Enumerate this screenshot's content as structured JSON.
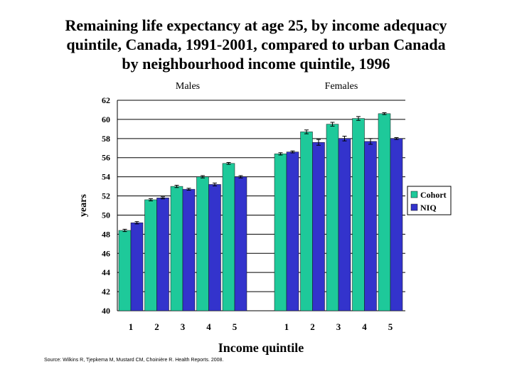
{
  "title_lines": [
    "Remaining life expectancy at age 25, by  income adequacy",
    "quintile, Canada, 1991-2001, compared to urban Canada",
    "by neighbourhood income quintile, 1996"
  ],
  "source": "Source: Wilkins R, Tjepkema M, Mustard CM, Choinière R. Health Reports. 2008.",
  "colors": {
    "cohort": "#1ec99a",
    "niq": "#3333cc",
    "grid": "#000000"
  },
  "chart_data": {
    "type": "bar",
    "ylabel": "years",
    "xlabel": "Income quintile",
    "ylim": [
      40,
      62
    ],
    "yticks": [
      40,
      42,
      44,
      46,
      48,
      50,
      52,
      54,
      56,
      58,
      60,
      62
    ],
    "grid": true,
    "legend_position": "right",
    "groups": [
      {
        "label": "Males",
        "categories": [
          "1",
          "2",
          "3",
          "4",
          "5"
        ]
      },
      {
        "label": "Females",
        "categories": [
          "1",
          "2",
          "3",
          "4",
          "5"
        ]
      }
    ],
    "series": [
      {
        "name": "Cohort",
        "values": [
          48.4,
          51.6,
          53.0,
          54.0,
          55.4,
          56.4,
          58.7,
          59.5,
          60.1,
          60.6
        ]
      },
      {
        "name": "NIQ",
        "values": [
          49.2,
          51.8,
          52.7,
          53.2,
          54.0,
          56.6,
          57.6,
          58.0,
          57.7,
          58.0
        ]
      }
    ]
  }
}
